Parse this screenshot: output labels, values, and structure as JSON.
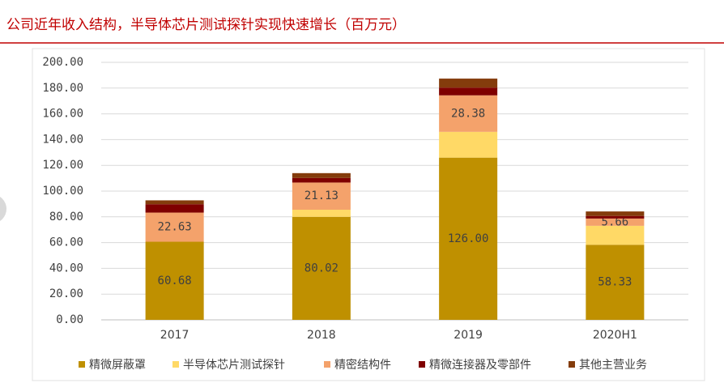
{
  "chart_data": {
    "type": "stacked_bar",
    "title": "公司近年收入结构，半导体芯片测试探针实现快速增长（百万元）",
    "categories": [
      "2017",
      "2018",
      "2019",
      "2020H1"
    ],
    "series": [
      {
        "name": "精微屏蔽罩",
        "color": "#bf9000",
        "values": [
          60.68,
          80.02,
          126,
          58.33
        ],
        "value_labels": [
          "60.68",
          "80.02",
          "126.00",
          "58.33"
        ]
      },
      {
        "name": "半导体芯片测试探针",
        "color": "#ffd966",
        "values": [
          0,
          5.5,
          20,
          14.7
        ]
      },
      {
        "name": "精密结构件",
        "color": "#f4a26b",
        "values": [
          22.63,
          21.13,
          28.38,
          5.66
        ],
        "value_labels": [
          "22.63",
          "21.13",
          "28.38",
          "5.66"
        ]
      },
      {
        "name": "精微连接器及零部件",
        "color": "#7f0000",
        "values": [
          6.5,
          3.5,
          6,
          2
        ]
      },
      {
        "name": "其他主营业务",
        "color": "#843c0c",
        "values": [
          3,
          3.8,
          7,
          3.5
        ]
      }
    ],
    "ylim": [
      0,
      200
    ],
    "yticks": [
      {
        "value": 0,
        "label": "0.00"
      },
      {
        "value": 20,
        "label": "20.00"
      },
      {
        "value": 40,
        "label": "40.00"
      },
      {
        "value": 60,
        "label": "60.00"
      },
      {
        "value": 80,
        "label": "80.00"
      },
      {
        "value": 100,
        "label": "100.00"
      },
      {
        "value": 120,
        "label": "120.00"
      },
      {
        "value": 140,
        "label": "140.00"
      },
      {
        "value": 160,
        "label": "160.00"
      },
      {
        "value": 180,
        "label": "180.00"
      },
      {
        "value": 200,
        "label": "200.00"
      }
    ],
    "grid": true
  }
}
